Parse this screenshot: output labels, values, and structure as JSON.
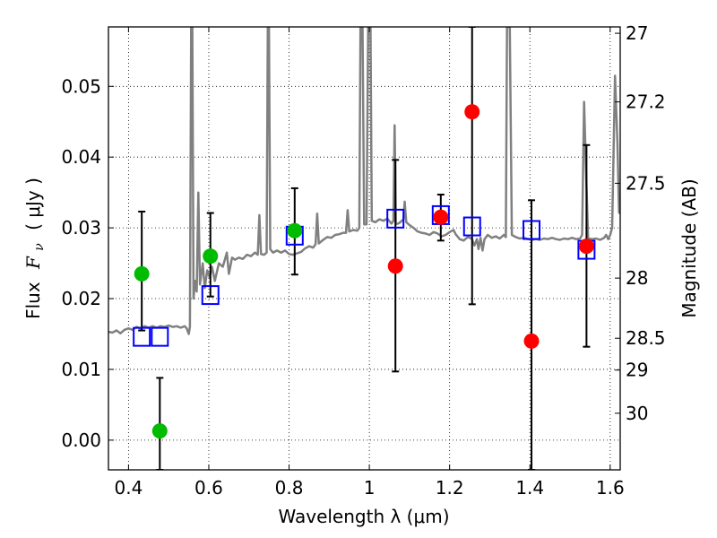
{
  "chart_data": {
    "type": "scatter",
    "title": "",
    "xlabel": "Wavelength  λ (μm)",
    "ylabel": "Flux  Fν  ( μJy )",
    "ylabel_parts": {
      "prefix": "Flux",
      "symbol": "F",
      "subscript": "ν",
      "unit": "( μJy )"
    },
    "y2label": "Magnitude (AB)",
    "xlim": [
      0.35,
      1.625
    ],
    "ylim": [
      -0.0042,
      0.0584
    ],
    "grid": true,
    "x_ticks": [
      0.4,
      0.6,
      0.8,
      1.0,
      1.2,
      1.4,
      1.6
    ],
    "x_tick_labels": [
      "0.4",
      "0.6",
      "0.8",
      "1",
      "1.2",
      "1.4",
      "1.6"
    ],
    "y_ticks": [
      0.0,
      0.01,
      0.02,
      0.03,
      0.04,
      0.05
    ],
    "y_tick_labels": [
      "0.00",
      "0.01",
      "0.02",
      "0.03",
      "0.04",
      "0.05"
    ],
    "y2_ticks": [
      {
        "label": "27",
        "flux": 0.0575
      },
      {
        "label": "27.2",
        "flux": 0.0478
      },
      {
        "label": "27.5",
        "flux": 0.0363
      },
      {
        "label": "28",
        "flux": 0.0229
      },
      {
        "label": "28.5",
        "flux": 0.0144
      },
      {
        "label": "29",
        "flux": 0.0099
      },
      {
        "label": "30",
        "flux": 0.0038
      }
    ],
    "colors": {
      "spectrum": "#808080",
      "green_points": "#00bb00",
      "red_points": "#ff0000",
      "model_squares": "#0000ff",
      "errorbars": "#000000"
    },
    "series": [
      {
        "name": "model-spectrum",
        "type": "line",
        "points": [
          [
            0.35,
            0.0153
          ],
          [
            0.36,
            0.0152
          ],
          [
            0.37,
            0.0155
          ],
          [
            0.38,
            0.0151
          ],
          [
            0.39,
            0.0156
          ],
          [
            0.4,
            0.0158
          ],
          [
            0.41,
            0.0156
          ],
          [
            0.42,
            0.016
          ],
          [
            0.43,
            0.0158
          ],
          [
            0.44,
            0.0161
          ],
          [
            0.45,
            0.0159
          ],
          [
            0.46,
            0.0161
          ],
          [
            0.47,
            0.0159
          ],
          [
            0.48,
            0.0161
          ],
          [
            0.49,
            0.016
          ],
          [
            0.5,
            0.0162
          ],
          [
            0.51,
            0.016
          ],
          [
            0.52,
            0.0161
          ],
          [
            0.53,
            0.0159
          ],
          [
            0.54,
            0.0161
          ],
          [
            0.545,
            0.0158
          ],
          [
            0.55,
            0.015
          ],
          [
            0.553,
            0.016
          ],
          [
            0.556,
            0.0584
          ],
          [
            0.559,
            0.0584
          ],
          [
            0.562,
            0.02
          ],
          [
            0.566,
            0.0225
          ],
          [
            0.57,
            0.021
          ],
          [
            0.574,
            0.035
          ],
          [
            0.578,
            0.022
          ],
          [
            0.585,
            0.025
          ],
          [
            0.59,
            0.0215
          ],
          [
            0.596,
            0.024
          ],
          [
            0.602,
            0.023
          ],
          [
            0.608,
            0.0245
          ],
          [
            0.615,
            0.0225
          ],
          [
            0.625,
            0.025
          ],
          [
            0.635,
            0.0245
          ],
          [
            0.645,
            0.0265
          ],
          [
            0.65,
            0.0235
          ],
          [
            0.658,
            0.0258
          ],
          [
            0.665,
            0.0255
          ],
          [
            0.675,
            0.0258
          ],
          [
            0.685,
            0.0256
          ],
          [
            0.695,
            0.0262
          ],
          [
            0.705,
            0.026
          ],
          [
            0.715,
            0.0265
          ],
          [
            0.722,
            0.0262
          ],
          [
            0.726,
            0.0318
          ],
          [
            0.73,
            0.0263
          ],
          [
            0.738,
            0.0262
          ],
          [
            0.744,
            0.0265
          ],
          [
            0.747,
            0.0584
          ],
          [
            0.75,
            0.0584
          ],
          [
            0.753,
            0.027
          ],
          [
            0.76,
            0.0265
          ],
          [
            0.77,
            0.0268
          ],
          [
            0.78,
            0.0265
          ],
          [
            0.79,
            0.0268
          ],
          [
            0.8,
            0.0263
          ],
          [
            0.81,
            0.0262
          ],
          [
            0.82,
            0.0264
          ],
          [
            0.83,
            0.0266
          ],
          [
            0.84,
            0.0271
          ],
          [
            0.85,
            0.0274
          ],
          [
            0.86,
            0.0272
          ],
          [
            0.866,
            0.0277
          ],
          [
            0.87,
            0.032
          ],
          [
            0.874,
            0.0278
          ],
          [
            0.885,
            0.0283
          ],
          [
            0.895,
            0.0287
          ],
          [
            0.905,
            0.0286
          ],
          [
            0.915,
            0.029
          ],
          [
            0.925,
            0.0291
          ],
          [
            0.935,
            0.0293
          ],
          [
            0.942,
            0.0293
          ],
          [
            0.946,
            0.0325
          ],
          [
            0.95,
            0.0295
          ],
          [
            0.96,
            0.0297
          ],
          [
            0.97,
            0.0296
          ],
          [
            0.975,
            0.03
          ],
          [
            0.978,
            0.0584
          ],
          [
            0.983,
            0.0584
          ],
          [
            0.987,
            0.0305
          ],
          [
            0.993,
            0.0305
          ],
          [
            0.997,
            0.0584
          ],
          [
            1.003,
            0.0584
          ],
          [
            1.006,
            0.031
          ],
          [
            1.015,
            0.0308
          ],
          [
            1.025,
            0.0312
          ],
          [
            1.035,
            0.031
          ],
          [
            1.045,
            0.0313
          ],
          [
            1.055,
            0.0306
          ],
          [
            1.06,
            0.031
          ],
          [
            1.063,
            0.0445
          ],
          [
            1.066,
            0.0305
          ],
          [
            1.075,
            0.0307
          ],
          [
            1.085,
            0.0312
          ],
          [
            1.088,
            0.0337
          ],
          [
            1.092,
            0.0308
          ],
          [
            1.1,
            0.0304
          ],
          [
            1.11,
            0.03
          ],
          [
            1.12,
            0.0295
          ],
          [
            1.13,
            0.0293
          ],
          [
            1.14,
            0.0292
          ],
          [
            1.15,
            0.029
          ],
          [
            1.16,
            0.0294
          ],
          [
            1.17,
            0.0292
          ],
          [
            1.18,
            0.0288
          ],
          [
            1.19,
            0.029
          ],
          [
            1.2,
            0.0294
          ],
          [
            1.21,
            0.0297
          ],
          [
            1.215,
            0.0291
          ],
          [
            1.225,
            0.0284
          ],
          [
            1.235,
            0.0282
          ],
          [
            1.245,
            0.0287
          ],
          [
            1.255,
            0.0285
          ],
          [
            1.262,
            0.0275
          ],
          [
            1.268,
            0.0284
          ],
          [
            1.272,
            0.027
          ],
          [
            1.277,
            0.0286
          ],
          [
            1.282,
            0.0268
          ],
          [
            1.287,
            0.0284
          ],
          [
            1.295,
            0.029
          ],
          [
            1.305,
            0.0286
          ],
          [
            1.315,
            0.0288
          ],
          [
            1.325,
            0.0285
          ],
          [
            1.335,
            0.029
          ],
          [
            1.34,
            0.0287
          ],
          [
            1.343,
            0.0584
          ],
          [
            1.35,
            0.0584
          ],
          [
            1.355,
            0.029
          ],
          [
            1.365,
            0.0287
          ],
          [
            1.375,
            0.0285
          ],
          [
            1.385,
            0.0286
          ],
          [
            1.395,
            0.0284
          ],
          [
            1.405,
            0.0283
          ],
          [
            1.415,
            0.0284
          ],
          [
            1.425,
            0.0283
          ],
          [
            1.435,
            0.0285
          ],
          [
            1.445,
            0.0284
          ],
          [
            1.455,
            0.0286
          ],
          [
            1.465,
            0.0284
          ],
          [
            1.475,
            0.0283
          ],
          [
            1.485,
            0.0285
          ],
          [
            1.495,
            0.0284
          ],
          [
            1.505,
            0.0286
          ],
          [
            1.515,
            0.0284
          ],
          [
            1.525,
            0.0285
          ],
          [
            1.53,
            0.029
          ],
          [
            1.535,
            0.0478
          ],
          [
            1.54,
            0.038
          ],
          [
            1.545,
            0.0285
          ],
          [
            1.555,
            0.0284
          ],
          [
            1.565,
            0.0285
          ],
          [
            1.575,
            0.0283
          ],
          [
            1.585,
            0.0286
          ],
          [
            1.59,
            0.029
          ],
          [
            1.595,
            0.0284
          ],
          [
            1.6,
            0.029
          ],
          [
            1.605,
            0.03
          ],
          [
            1.612,
            0.0515
          ],
          [
            1.618,
            0.042
          ],
          [
            1.622,
            0.0322
          ],
          [
            1.625,
            0.032
          ]
        ]
      },
      {
        "name": "green-photometry",
        "type": "errorbar",
        "marker": "circle",
        "points": [
          {
            "x": 0.433,
            "y": 0.0235,
            "ylo": 0.0155,
            "yhi": 0.0323
          },
          {
            "x": 0.478,
            "y": 0.0013,
            "ylo": -0.0042,
            "yhi": 0.0088
          },
          {
            "x": 0.604,
            "y": 0.026,
            "ylo": 0.0203,
            "yhi": 0.0321
          },
          {
            "x": 0.814,
            "y": 0.0296,
            "ylo": 0.0234,
            "yhi": 0.0356
          }
        ]
      },
      {
        "name": "red-photometry",
        "type": "errorbar",
        "marker": "circle",
        "points": [
          {
            "x": 1.065,
            "y": 0.0246,
            "ylo": 0.0097,
            "yhi": 0.0396
          },
          {
            "x": 1.178,
            "y": 0.0315,
            "ylo": 0.0282,
            "yhi": 0.0347
          },
          {
            "x": 1.256,
            "y": 0.0464,
            "ylo": 0.0192,
            "yhi": 0.0584
          },
          {
            "x": 1.404,
            "y": 0.014,
            "ylo": -0.0042,
            "yhi": 0.0339
          },
          {
            "x": 1.541,
            "y": 0.0274,
            "ylo": 0.0132,
            "yhi": 0.0417
          }
        ]
      },
      {
        "name": "model-synthetic-photometry",
        "type": "scatter",
        "marker": "open-square",
        "points": [
          {
            "x": 0.433,
            "y": 0.0146
          },
          {
            "x": 0.478,
            "y": 0.0146
          },
          {
            "x": 0.604,
            "y": 0.0205
          },
          {
            "x": 0.814,
            "y": 0.0289
          },
          {
            "x": 1.065,
            "y": 0.0313
          },
          {
            "x": 1.178,
            "y": 0.0318
          },
          {
            "x": 1.256,
            "y": 0.0302
          },
          {
            "x": 1.404,
            "y": 0.0297
          },
          {
            "x": 1.541,
            "y": 0.0269
          }
        ]
      }
    ],
    "legend": null
  }
}
